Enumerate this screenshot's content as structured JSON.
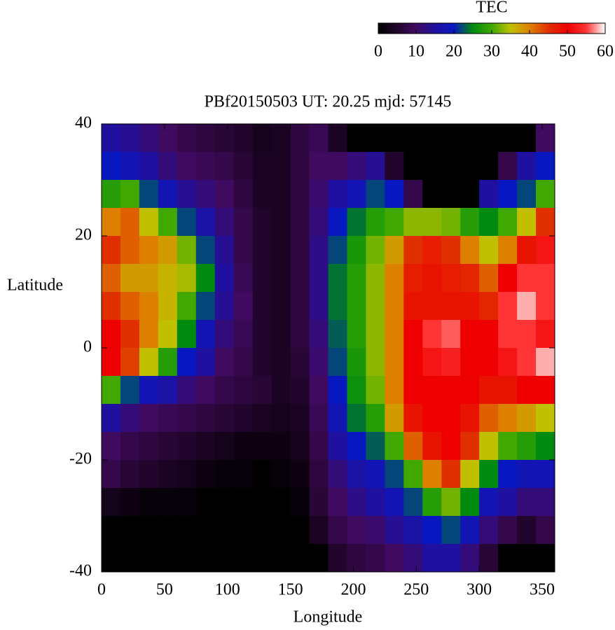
{
  "chart_data": {
    "type": "heatmap",
    "title": "PBf20150503  UT: 20.25  mjd: 57145",
    "xlabel": "Longitude",
    "ylabel": "Latitude",
    "colorbar_label": "TEC",
    "xlim": [
      0,
      360
    ],
    "xticks": [
      0,
      50,
      100,
      150,
      200,
      250,
      300,
      350
    ],
    "ylim": [
      -40,
      40
    ],
    "yticks": [
      -40,
      -20,
      0,
      20,
      40
    ],
    "clim": [
      0,
      60
    ],
    "cticks": [
      0,
      10,
      20,
      30,
      40,
      50,
      60
    ],
    "colormap": [
      "#000000",
      "#22052c",
      "#400a60",
      "#2010a0",
      "#0818c0",
      "#008a10",
      "#40a800",
      "#c0c000",
      "#dd8000",
      "#e03000",
      "#ee0000",
      "#ff3535",
      "#ffffff"
    ],
    "x": [
      7.5,
      22.5,
      37.5,
      52.5,
      67.5,
      82.5,
      97.5,
      112.5,
      127.5,
      142.5,
      157.5,
      172.5,
      187.5,
      202.5,
      217.5,
      232.5,
      247.5,
      262.5,
      277.5,
      292.5,
      307.5,
      322.5,
      337.5,
      352.5
    ],
    "y": [
      37.5,
      32.5,
      27.5,
      22.5,
      17.5,
      12.5,
      7.5,
      2.5,
      -2.5,
      -7.5,
      -12.5,
      -17.5,
      -22.5,
      -27.5,
      -32.5,
      -37.5
    ],
    "z": [
      [
        15,
        14,
        12,
        10,
        8,
        7,
        6,
        5,
        3,
        4,
        7,
        9,
        4,
        0,
        0,
        0,
        0,
        0,
        0,
        0,
        0,
        0,
        0,
        10
      ],
      [
        20,
        18,
        15,
        12,
        10,
        9,
        8,
        6,
        4,
        4,
        7,
        10,
        10,
        12,
        14,
        5,
        0,
        0,
        0,
        0,
        0,
        8,
        15,
        20
      ],
      [
        28,
        30,
        22,
        18,
        14,
        12,
        10,
        7,
        4,
        4,
        7,
        11,
        15,
        18,
        22,
        20,
        8,
        0,
        0,
        0,
        15,
        20,
        22,
        30
      ],
      [
        40,
        42,
        35,
        30,
        22,
        16,
        12,
        8,
        5,
        4,
        7,
        12,
        20,
        24,
        28,
        30,
        33,
        33,
        32,
        28,
        25,
        30,
        35,
        45
      ],
      [
        45,
        42,
        40,
        38,
        32,
        22,
        14,
        8,
        5,
        4,
        7,
        13,
        22,
        27,
        32,
        38,
        45,
        47,
        45,
        40,
        35,
        40,
        48,
        52
      ],
      [
        42,
        38,
        38,
        36,
        34,
        25,
        15,
        9,
        5,
        4,
        7,
        13,
        24,
        28,
        33,
        40,
        47,
        48,
        47,
        46,
        42,
        50,
        55,
        55
      ],
      [
        45,
        42,
        40,
        36,
        30,
        22,
        14,
        10,
        5,
        4,
        7,
        13,
        24,
        28,
        33,
        40,
        48,
        48,
        48,
        48,
        46,
        55,
        58,
        55
      ],
      [
        50,
        45,
        40,
        35,
        25,
        18,
        12,
        9,
        5,
        4,
        7,
        12,
        23,
        28,
        33,
        40,
        50,
        55,
        56,
        50,
        50,
        55,
        55,
        52
      ],
      [
        50,
        44,
        35,
        28,
        20,
        15,
        10,
        8,
        5,
        4,
        6,
        11,
        22,
        27,
        33,
        40,
        50,
        52,
        53,
        50,
        50,
        52,
        55,
        58
      ],
      [
        30,
        22,
        18,
        16,
        12,
        10,
        8,
        7,
        6,
        4,
        5,
        10,
        20,
        26,
        32,
        40,
        50,
        50,
        50,
        50,
        48,
        48,
        50,
        50
      ],
      [
        15,
        12,
        10,
        9,
        8,
        7,
        6,
        5,
        4,
        3,
        4,
        9,
        18,
        24,
        28,
        38,
        48,
        50,
        50,
        48,
        42,
        40,
        38,
        35
      ],
      [
        10,
        8,
        7,
        6,
        5,
        4,
        3,
        2,
        2,
        2,
        3,
        8,
        15,
        20,
        23,
        30,
        42,
        48,
        50,
        45,
        35,
        30,
        28,
        25
      ],
      [
        8,
        6,
        5,
        4,
        3,
        2,
        1,
        1,
        0,
        1,
        2,
        7,
        12,
        16,
        18,
        22,
        30,
        40,
        45,
        35,
        25,
        20,
        18,
        18
      ],
      [
        3,
        2,
        1,
        1,
        1,
        0,
        0,
        0,
        0,
        0,
        1,
        6,
        10,
        13,
        15,
        18,
        22,
        28,
        32,
        25,
        18,
        15,
        12,
        12
      ],
      [
        0,
        0,
        0,
        0,
        0,
        0,
        0,
        0,
        0,
        0,
        0,
        4,
        8,
        10,
        11,
        14,
        16,
        20,
        22,
        18,
        12,
        8,
        5,
        8
      ],
      [
        0,
        0,
        0,
        0,
        0,
        0,
        0,
        0,
        0,
        0,
        0,
        0,
        5,
        7,
        8,
        10,
        12,
        15,
        15,
        12,
        6,
        0,
        0,
        0
      ]
    ]
  }
}
